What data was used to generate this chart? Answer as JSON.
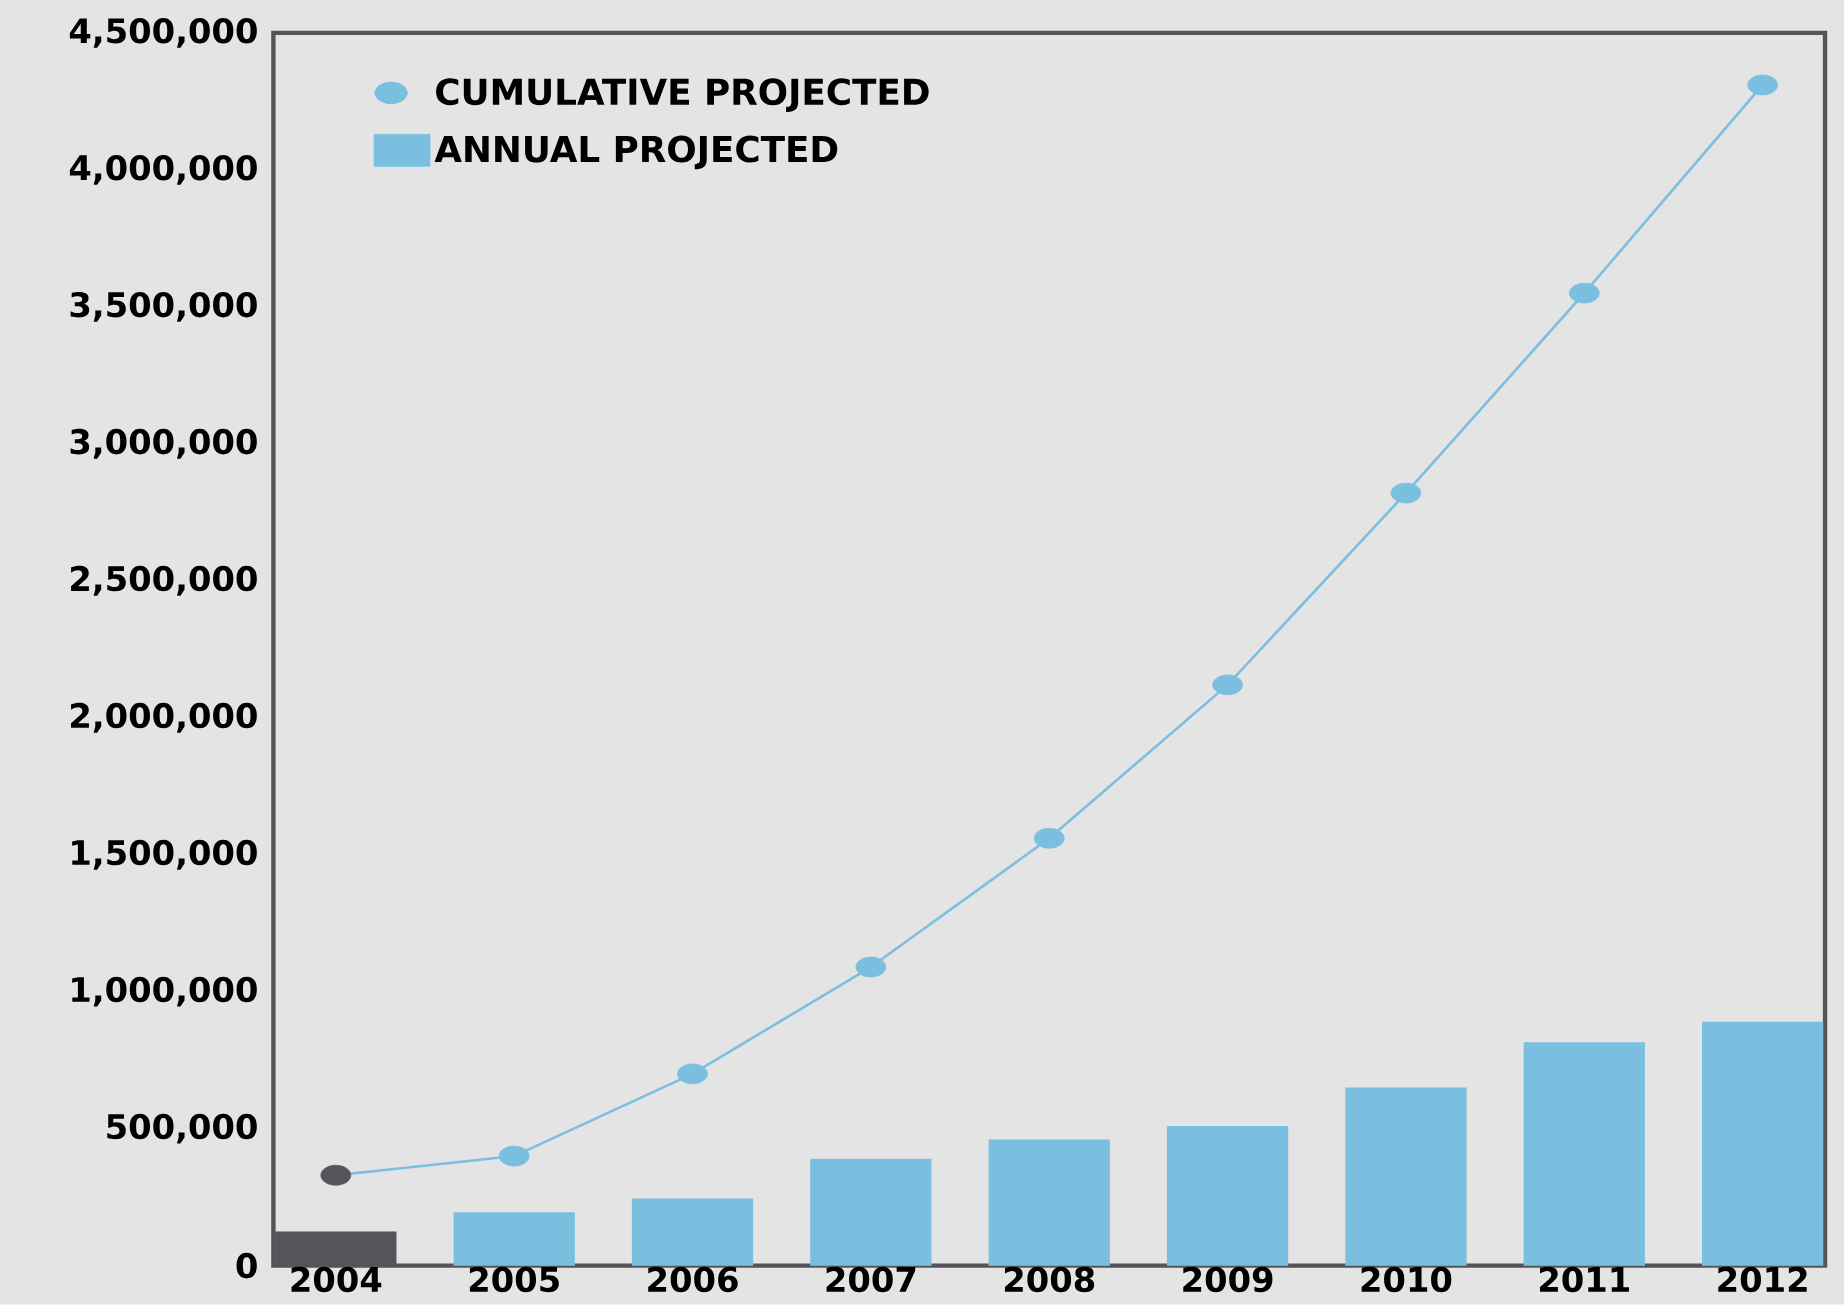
{
  "chart_data": {
    "type": "bar",
    "categories": [
      "2004",
      "2005",
      "2006",
      "2007",
      "2008",
      "2009",
      "2010",
      "2011",
      "2012"
    ],
    "ylim": [
      0,
      4500000
    ],
    "yticks": [
      0,
      {
        "value": 500000,
        "label": "500,000"
      },
      {
        "value": 1000000,
        "label": "1,000,000"
      },
      {
        "value": 1500000,
        "label": "1,500,000"
      },
      {
        "value": 2000000,
        "label": "2,000,000"
      },
      {
        "value": 2500000,
        "label": "2,500,000"
      },
      {
        "value": 3000000,
        "label": "3,000,000"
      },
      {
        "value": 3500000,
        "label": "3,500,000"
      },
      {
        "value": 4000000,
        "label": "4,000,000"
      },
      {
        "value": 4500000,
        "label": "4,500,000"
      }
    ],
    "legend": "top left",
    "series": [
      {
        "name": "CUMULATIVE PROJECTED",
        "type": "line",
        "marker": "circle",
        "color": "#7bbfe0",
        "colors": [
          "#555559",
          "#7bbfe0",
          "#7bbfe0",
          "#7bbfe0",
          "#7bbfe0",
          "#7bbfe0",
          "#7bbfe0",
          "#7bbfe0",
          "#7bbfe0"
        ],
        "values": [
          330000,
          400000,
          700000,
          1090000,
          1560000,
          2120000,
          2820000,
          3550000,
          4310000
        ]
      },
      {
        "name": "ANNUAL PROJECTED",
        "color": "#7bbfe0",
        "colors": [
          "#555559",
          "#7bbfe0",
          "#7bbfe0",
          "#7bbfe0",
          "#7bbfe0",
          "#7bbfe0",
          "#7bbfe0",
          "#7bbfe0",
          "#7bbfe0"
        ],
        "values": [
          125000,
          195000,
          245000,
          390000,
          460000,
          510000,
          650000,
          815000,
          890000
        ]
      }
    ]
  }
}
